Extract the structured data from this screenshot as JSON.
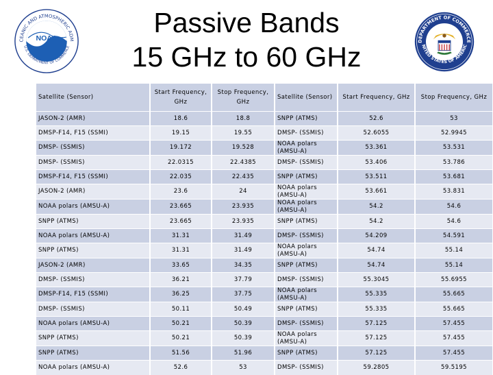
{
  "title": {
    "line1": "Passive Bands",
    "line2": "15 GHz to 60 GHz"
  },
  "logos": {
    "left": "noaa-logo",
    "right": "department-of-commerce-seal",
    "left_text": "NOAA",
    "left_ring": "NATIONAL OCEANIC AND ATMOSPHERIC ADMINISTRATION",
    "left_ring_bottom": "U.S. DEPARTMENT OF COMMERCE",
    "right_ring": "DEPARTMENT OF COMMERCE",
    "right_ring_bottom": "UNITED STATES OF AMERICA"
  },
  "colors": {
    "row_dark": "#c9d0e3",
    "row_light": "#e6e9f2"
  },
  "table": {
    "headers": [
      "Satellite (Sensor)",
      "Start Frequency, GHz",
      "Stop Frequency, GHz",
      "Satellite (Sensor)",
      "Start Frequency, GHz",
      "Stop Frequency, GHz"
    ],
    "rows": [
      [
        "JASON-2 (AMR)",
        "18.6",
        "18.8",
        "SNPP (ATMS)",
        "52.6",
        "53"
      ],
      [
        "DMSP-F14, F15 (SSMI)",
        "19.15",
        "19.55",
        "DMSP- (SSMIS)",
        "52.6055",
        "52.9945"
      ],
      [
        "DMSP- (SSMIS)",
        "19.172",
        "19.528",
        "NOAA polars (AMSU-A)",
        "53.361",
        "53.531"
      ],
      [
        "DMSP- (SSMIS)",
        "22.0315",
        "22.4385",
        "DMSP- (SSMIS)",
        "53.406",
        "53.786"
      ],
      [
        "DMSP-F14, F15 (SSMI)",
        "22.035",
        "22.435",
        "SNPP (ATMS)",
        "53.511",
        "53.681"
      ],
      [
        "JASON-2 (AMR)",
        "23.6",
        "24",
        "NOAA polars (AMSU-A)",
        "53.661",
        "53.831"
      ],
      [
        "NOAA polars (AMSU-A)",
        "23.665",
        "23.935",
        "NOAA polars (AMSU-A)",
        "54.2",
        "54.6"
      ],
      [
        "SNPP (ATMS)",
        "23.665",
        "23.935",
        "SNPP (ATMS)",
        "54.2",
        "54.6"
      ],
      [
        "NOAA polars (AMSU-A)",
        "31.31",
        "31.49",
        "DMSP- (SSMIS)",
        "54.209",
        "54.591"
      ],
      [
        "SNPP (ATMS)",
        "31.31",
        "31.49",
        "NOAA polars (AMSU-A)",
        "54.74",
        "55.14"
      ],
      [
        "JASON-2 (AMR)",
        "33.65",
        "34.35",
        "SNPP (ATMS)",
        "54.74",
        "55.14"
      ],
      [
        "DMSP- (SSMIS)",
        "36.21",
        "37.79",
        "DMSP- (SSMIS)",
        "55.3045",
        "55.6955"
      ],
      [
        "DMSP-F14, F15 (SSMI)",
        "36.25",
        "37.75",
        "NOAA polars (AMSU-A)",
        "55.335",
        "55.665"
      ],
      [
        "DMSP- (SSMIS)",
        "50.11",
        "50.49",
        "SNPP (ATMS)",
        "55.335",
        "55.665"
      ],
      [
        "NOAA polars (AMSU-A)",
        "50.21",
        "50.39",
        "DMSP- (SSMIS)",
        "57.125",
        "57.455"
      ],
      [
        "SNPP (ATMS)",
        "50.21",
        "50.39",
        "NOAA polars (AMSU-A)",
        "57.125",
        "57.455"
      ],
      [
        "SNPP (ATMS)",
        "51.56",
        "51.96",
        "SNPP (ATMS)",
        "57.125",
        "57.455"
      ],
      [
        "NOAA polars (AMSU-A)",
        "52.6",
        "53",
        "DMSP- (SSMIS)",
        "59.2805",
        "59.5195"
      ]
    ]
  }
}
